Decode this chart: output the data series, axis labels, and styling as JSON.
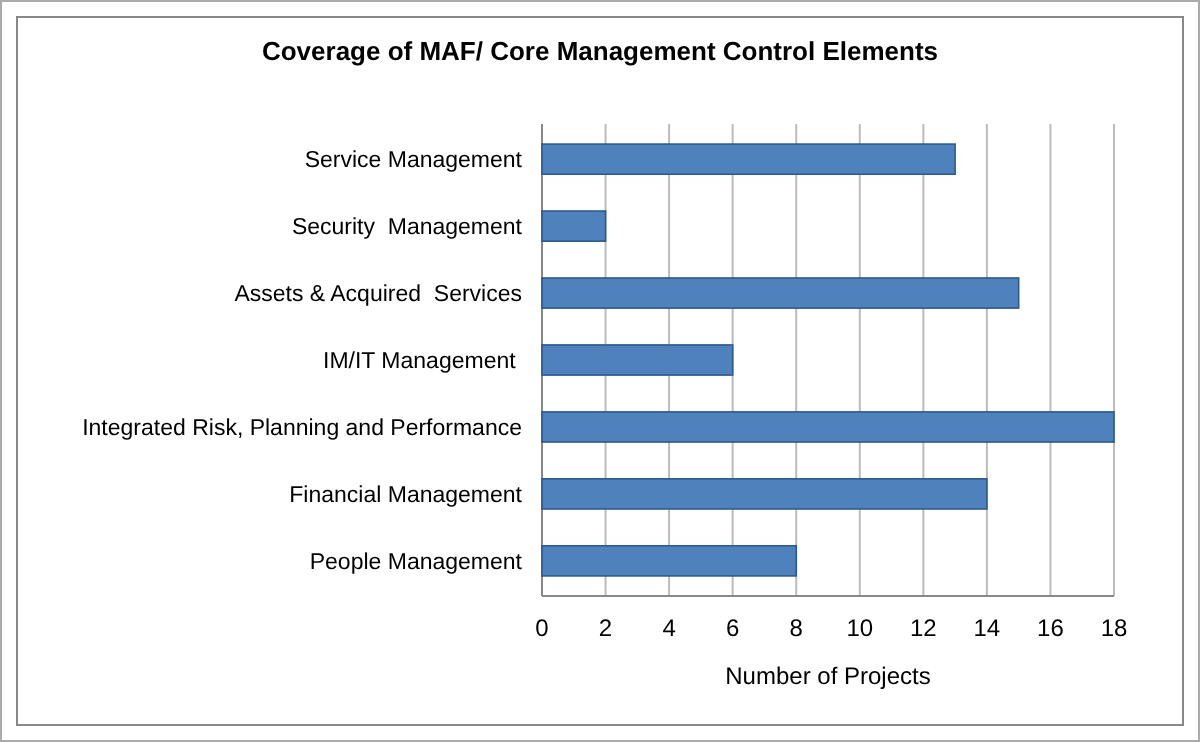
{
  "chart_data": {
    "type": "bar",
    "orientation": "horizontal",
    "title": "Coverage of MAF/ Core Management Control Elements",
    "xlabel": "Number of Projects",
    "categories": [
      "Service Management",
      "Security  Management",
      "Assets & Acquired  Services",
      "IM/IT Management ",
      "Integrated Risk, Planning and Performance",
      "Financial Management",
      "People Management"
    ],
    "values": [
      13,
      2,
      15,
      6,
      18,
      14,
      8
    ],
    "color": "#4f81bd",
    "xlim": [
      0,
      18
    ],
    "xticks": [
      0,
      2,
      4,
      6,
      8,
      10,
      12,
      14,
      16,
      18
    ],
    "grid": "x"
  }
}
